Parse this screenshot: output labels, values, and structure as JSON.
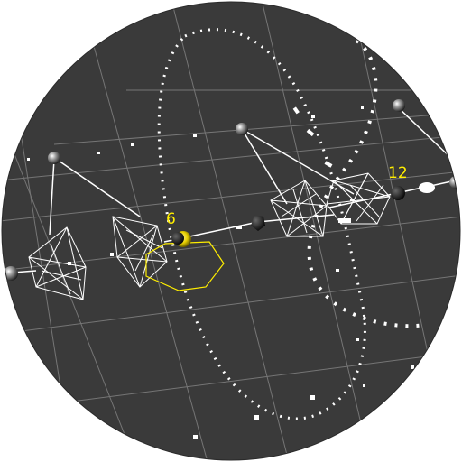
{
  "viewport": {
    "type": "3d-scene-circular-viewport",
    "background_color": "#3a3a3a",
    "outer_color": "#ffffff",
    "grid_color": "#8a8a8a",
    "wire_color": "#ffffff",
    "highlight_color": "#ffee00"
  },
  "labels": {
    "node_6": "6",
    "node_12": "12"
  }
}
